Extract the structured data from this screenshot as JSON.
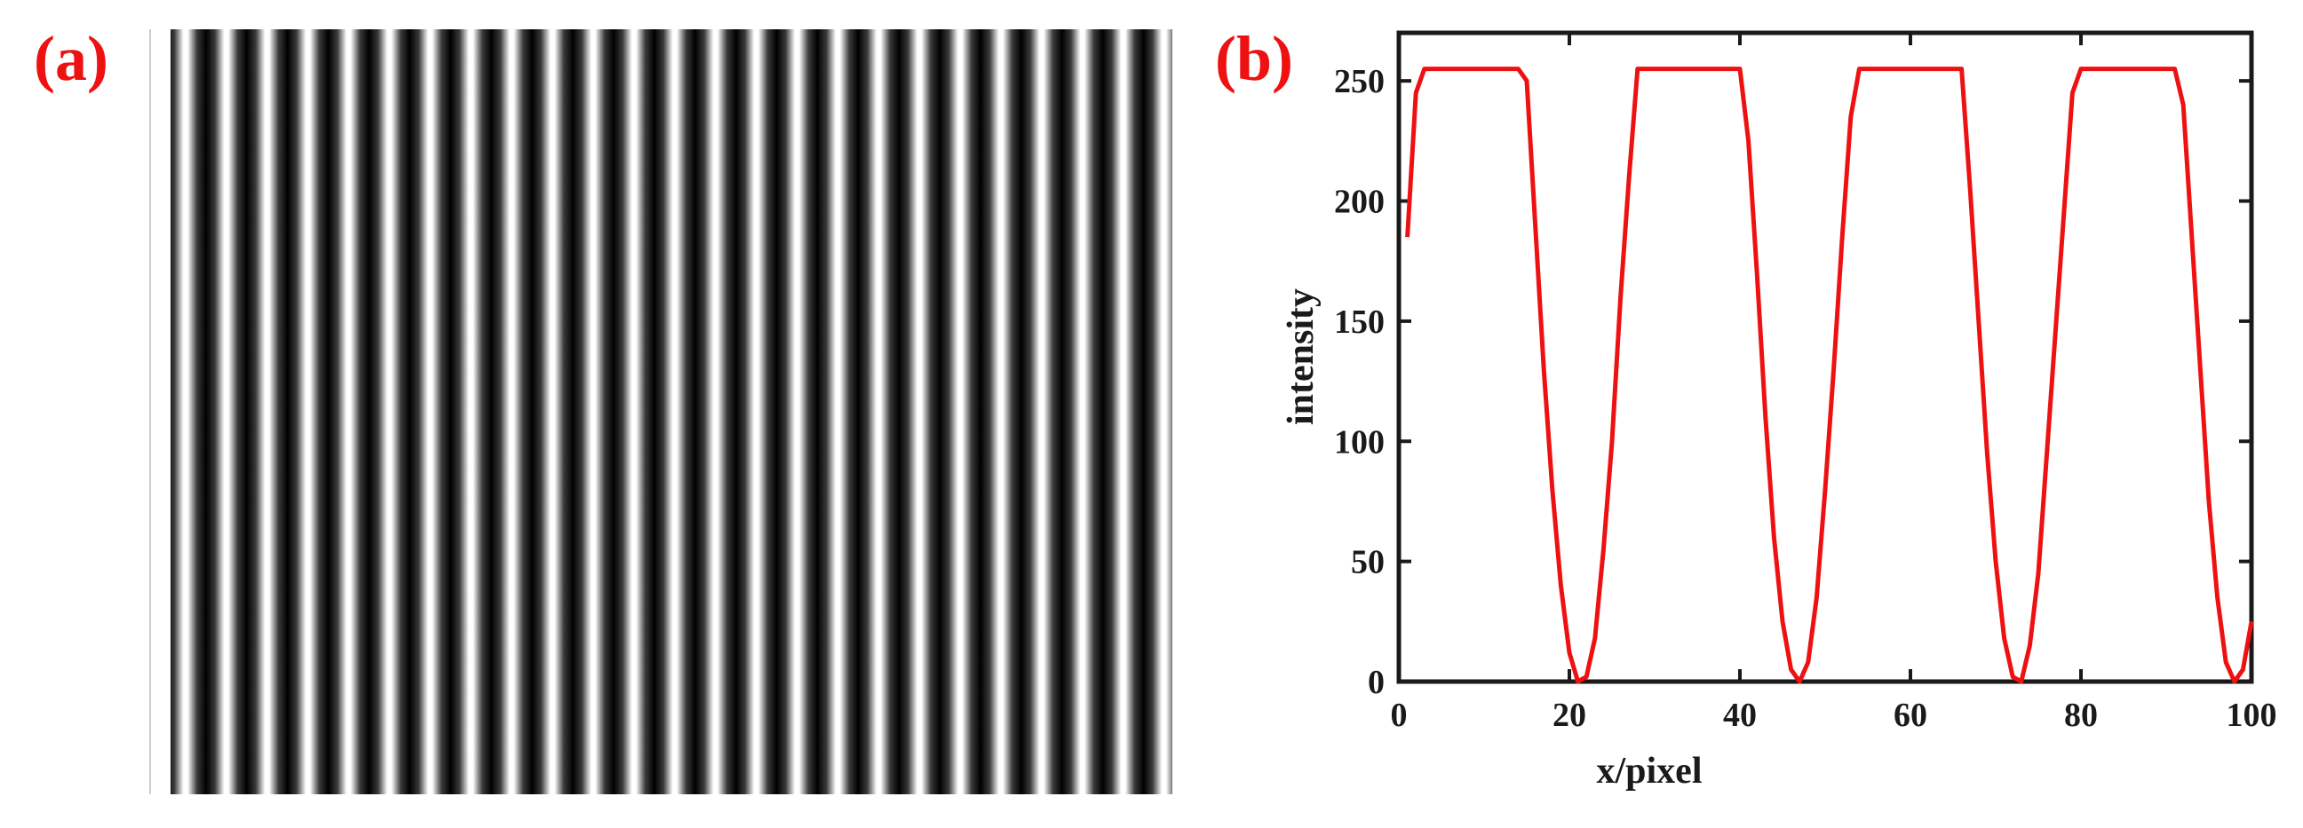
{
  "panels": {
    "a_label": "(a)",
    "b_label": "(b)",
    "label_color": "#ee1111"
  },
  "fringe_image": {
    "description_type": "vertical-cosine-fringes",
    "period_pixels": 25,
    "stripe_count": 27,
    "colors": {
      "dark": "#000000",
      "light": "#ffffff"
    }
  },
  "chart_data": {
    "type": "line",
    "xlabel": "x/pixel",
    "ylabel": "intensity",
    "xlim": [
      0,
      100
    ],
    "ylim": [
      0,
      270
    ],
    "xticks": [
      0,
      20,
      40,
      60,
      80,
      100
    ],
    "yticks": [
      0,
      50,
      100,
      150,
      200,
      250
    ],
    "grid": false,
    "line_color": "#ee1111",
    "series": [
      {
        "x": [
          1,
          2,
          3,
          4,
          5,
          6,
          7,
          8,
          9,
          10,
          11,
          12,
          13,
          14,
          15,
          16,
          17,
          18,
          19,
          20,
          21,
          22,
          23,
          24,
          25,
          26,
          27,
          28,
          29,
          30,
          31,
          32,
          33,
          34,
          35,
          36,
          37,
          38,
          39,
          40,
          41,
          42,
          43,
          44,
          45,
          46,
          47,
          48,
          49,
          50,
          51,
          52,
          53,
          54,
          55,
          56,
          57,
          58,
          59,
          60,
          61,
          62,
          63,
          64,
          65,
          66,
          67,
          68,
          69,
          70,
          71,
          72,
          73,
          74,
          75,
          76,
          77,
          78,
          79,
          80,
          81,
          82,
          83,
          84,
          85,
          86,
          87,
          88,
          89,
          90,
          91,
          92,
          93,
          94,
          95,
          96,
          97,
          98,
          99,
          100
        ],
        "values": [
          185,
          245,
          255,
          255,
          255,
          255,
          255,
          255,
          255,
          255,
          255,
          255,
          255,
          255,
          250,
          190,
          130,
          80,
          40,
          12,
          0,
          2,
          18,
          55,
          100,
          160,
          210,
          255,
          255,
          255,
          255,
          255,
          255,
          255,
          255,
          255,
          255,
          255,
          255,
          255,
          225,
          170,
          110,
          60,
          25,
          5,
          0,
          8,
          35,
          80,
          130,
          185,
          235,
          255,
          255,
          255,
          255,
          255,
          255,
          255,
          255,
          255,
          255,
          255,
          255,
          255,
          205,
          150,
          95,
          50,
          18,
          2,
          0,
          15,
          45,
          95,
          145,
          195,
          245,
          255,
          255,
          255,
          255,
          255,
          255,
          255,
          255,
          255,
          255,
          255,
          255,
          240,
          185,
          130,
          75,
          35,
          8,
          0,
          5,
          25
        ]
      }
    ]
  }
}
